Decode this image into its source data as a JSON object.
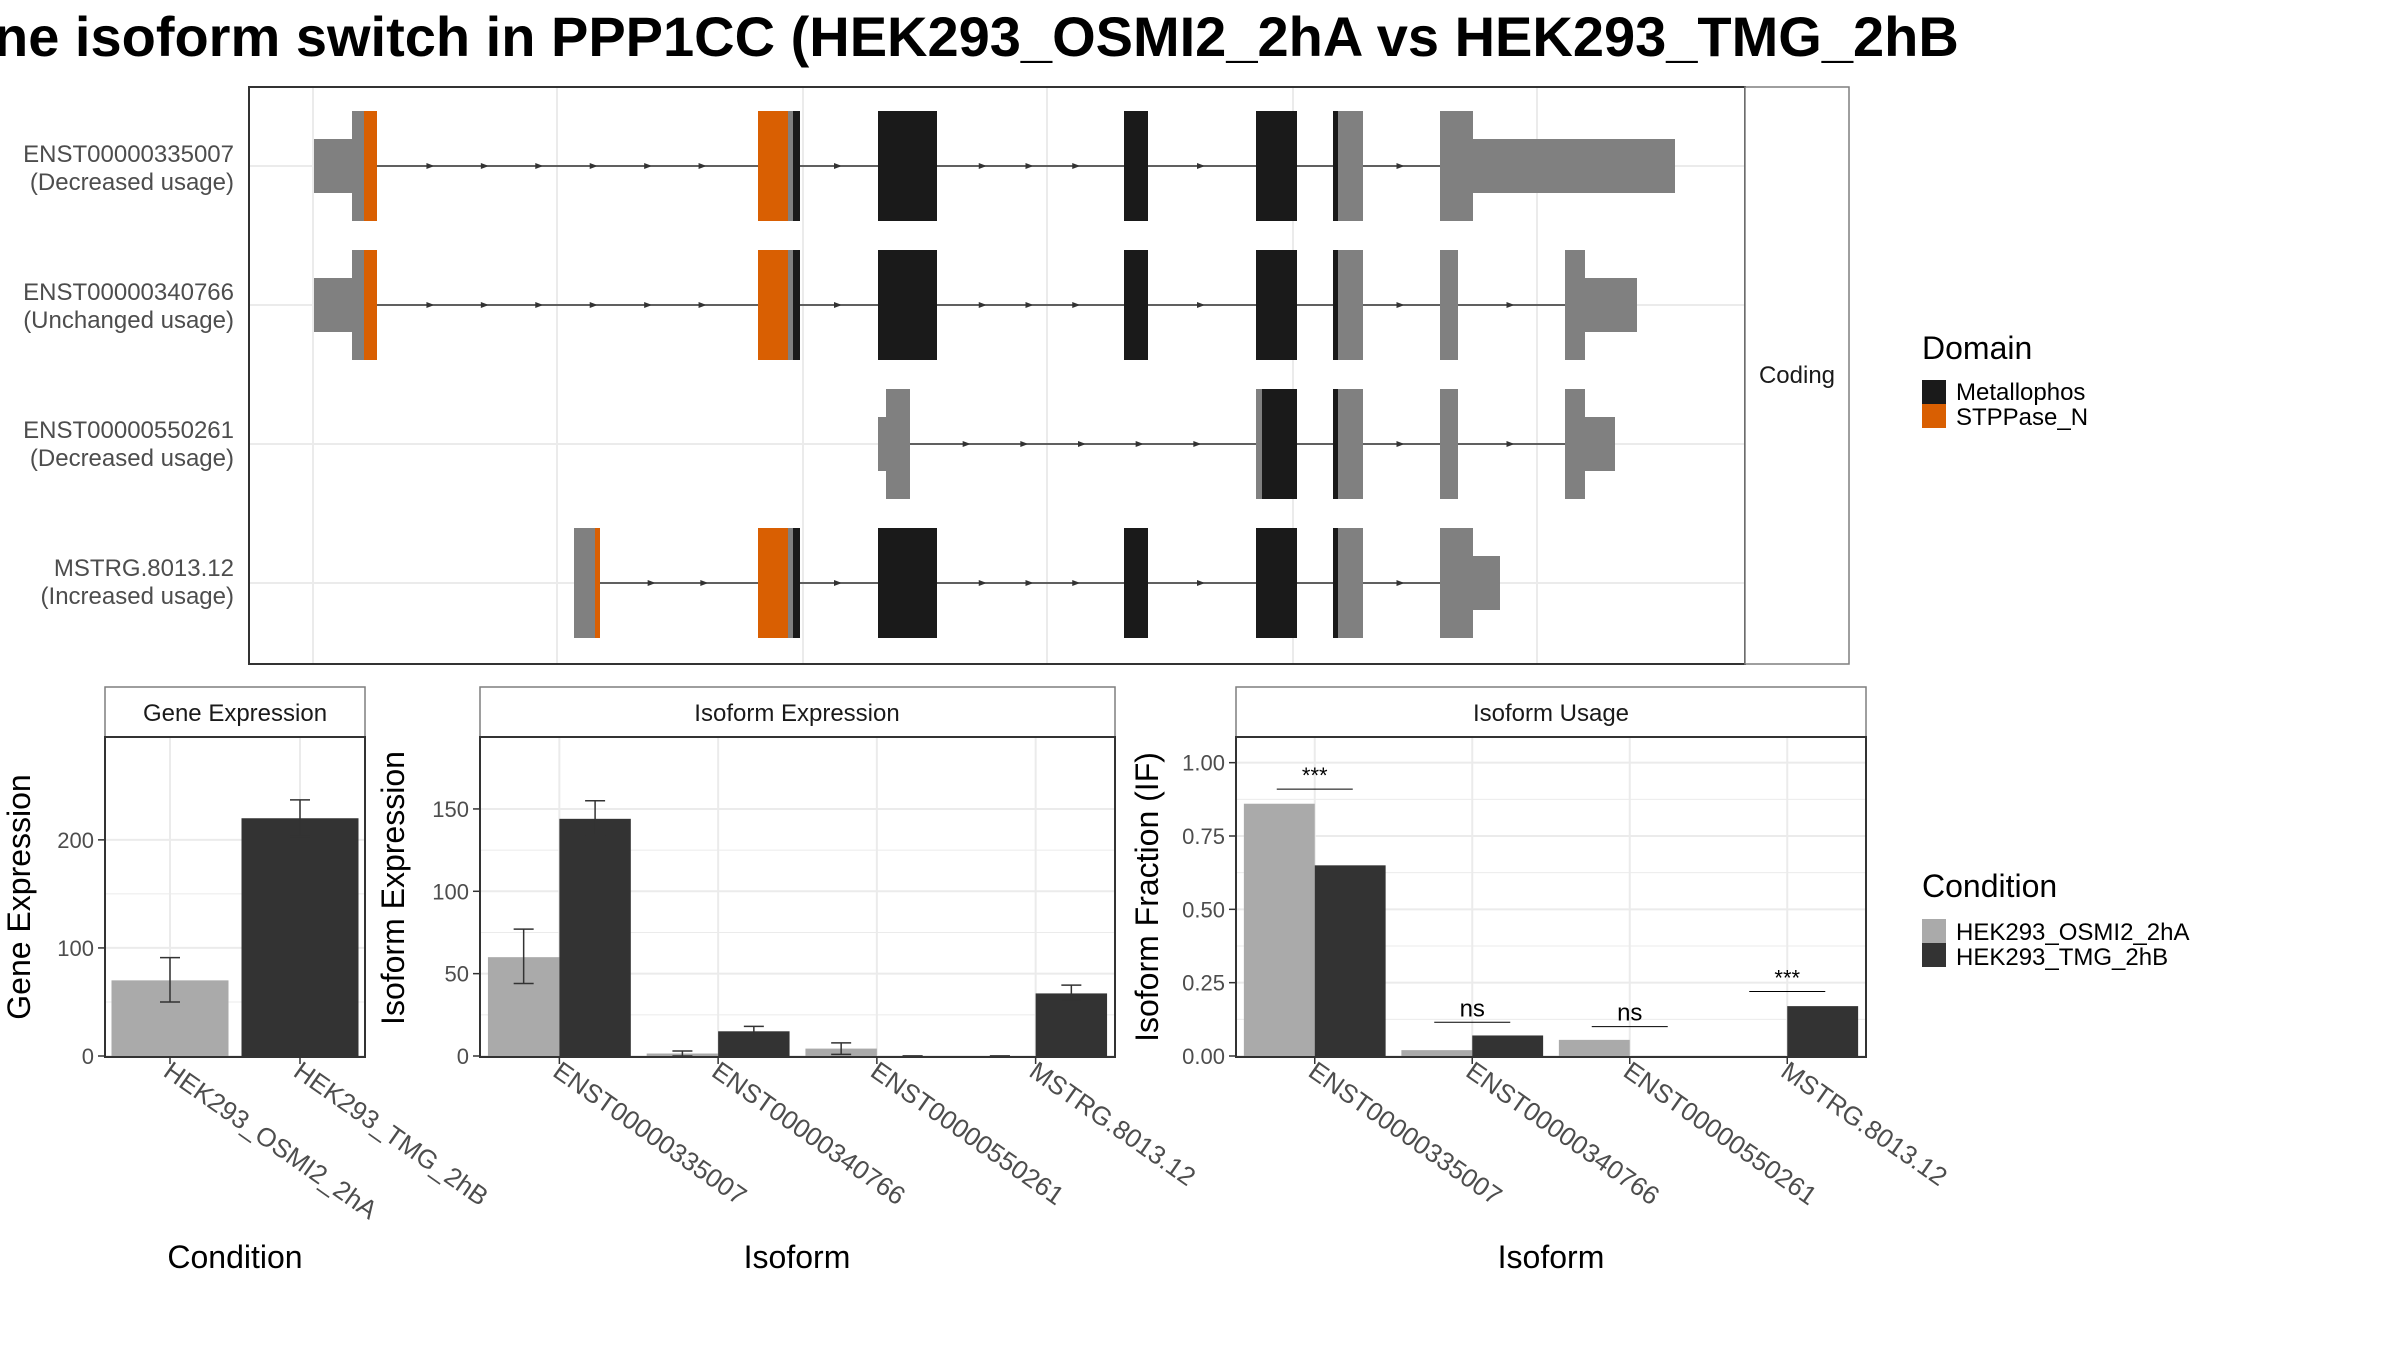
{
  "title": "ne isoform switch in PPP1CC (HEK293_OSMI2_2hA vs HEK293_TMG_2hB",
  "colors": {
    "metallophos": "#1a1a1a",
    "stppase": "#d95f02",
    "utr": "#808080",
    "cond_a": "#aaaaaa",
    "cond_b": "#333333",
    "grid": "#ebebeb",
    "panel_border": "#333333",
    "strip_border": "#7f7f7f",
    "strip_fill": "#ffffff",
    "text": "#000000",
    "axis_text": "#4d4d4d"
  },
  "structure": {
    "facet_label": "Coding",
    "isoforms": [
      {
        "id": "ENST00000335007",
        "usage": "(Decreased usage)"
      },
      {
        "id": "ENST00000340766",
        "usage": "(Unchanged usage)"
      },
      {
        "id": "ENST00000550261",
        "usage": "(Decreased usage)"
      },
      {
        "id": "MSTRG.8013.12",
        "usage": "(Increased usage)"
      }
    ]
  },
  "legend_domain": {
    "title": "Domain",
    "items": [
      {
        "label": "Metallophos",
        "color": "#1a1a1a"
      },
      {
        "label": "STPPase_N",
        "color": "#d95f02"
      }
    ]
  },
  "legend_condition": {
    "title": "Condition",
    "items": [
      {
        "label": "HEK293_OSMI2_2hA",
        "color": "#aaaaaa"
      },
      {
        "label": "HEK293_TMG_2hB",
        "color": "#333333"
      }
    ]
  },
  "chart_data": [
    {
      "type": "bar",
      "title": "Gene Expression",
      "xlabel": "Condition",
      "ylabel": "Gene Expression",
      "ylim": [
        0,
        285
      ],
      "yticks": [
        0,
        100,
        200
      ],
      "categories": [
        "HEK293_OSMI2_2hA",
        "HEK293_TMG_2hB"
      ],
      "values": [
        70,
        220
      ],
      "errors": [
        [
          50,
          91
        ],
        [
          203,
          237
        ]
      ]
    },
    {
      "type": "bar",
      "title": "Isoform Expression",
      "xlabel": "Isoform",
      "ylabel": "Isoform Expression",
      "ylim": [
        0,
        187
      ],
      "yticks": [
        0,
        50,
        100,
        150
      ],
      "categories": [
        "ENST00000335007",
        "ENST00000340766",
        "ENST00000550261",
        "MSTRG.8013.12"
      ],
      "series": [
        {
          "name": "HEK293_OSMI2_2hA",
          "values": [
            60,
            1.5,
            4.5,
            0
          ],
          "errors": [
            [
              44,
              77
            ],
            [
              0,
              3
            ],
            [
              1,
              8
            ],
            [
              0,
              0
            ]
          ]
        },
        {
          "name": "HEK293_TMG_2hB",
          "values": [
            144,
            15,
            0,
            38
          ],
          "errors": [
            [
              134,
              155
            ],
            [
              12,
              18
            ],
            [
              0,
              0
            ],
            [
              34,
              43
            ]
          ]
        }
      ]
    },
    {
      "type": "bar",
      "title": "Isoform Usage",
      "xlabel": "Isoform",
      "ylabel": "Isoform Fraction (IF)",
      "ylim": [
        0,
        1.05
      ],
      "yticks": [
        "0.00",
        "0.25",
        "0.50",
        "0.75",
        "1.00"
      ],
      "categories": [
        "ENST00000335007",
        "ENST00000340766",
        "ENST00000550261",
        "MSTRG.8013.12"
      ],
      "series": [
        {
          "name": "HEK293_OSMI2_2hA",
          "values": [
            0.86,
            0.02,
            0.055,
            0.0
          ]
        },
        {
          "name": "HEK293_TMG_2hB",
          "values": [
            0.65,
            0.07,
            0.0,
            0.17
          ]
        }
      ],
      "annotations": [
        {
          "category": "ENST00000335007",
          "label": "***",
          "y": 0.91
        },
        {
          "category": "ENST00000340766",
          "label": "ns",
          "y": 0.115
        },
        {
          "category": "ENST00000550261",
          "label": "ns",
          "y": 0.1
        },
        {
          "category": "MSTRG.8013.12",
          "label": "***",
          "y": 0.22
        }
      ]
    }
  ]
}
